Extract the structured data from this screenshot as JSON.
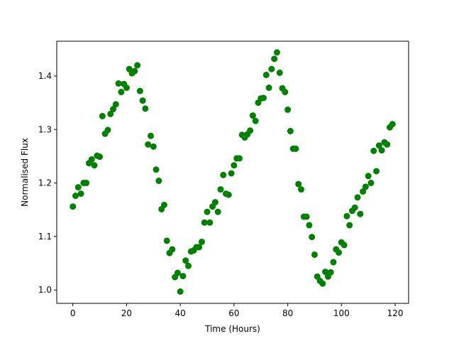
{
  "chart_data": {
    "type": "scatter",
    "title": "",
    "xlabel": "Time (Hours)",
    "ylabel": "Normalised Flux",
    "xlim": [
      -6,
      125
    ],
    "ylim": [
      0.975,
      1.465
    ],
    "xticks": [
      0,
      20,
      40,
      60,
      80,
      100,
      120
    ],
    "yticks": [
      1.0,
      1.1,
      1.2,
      1.3,
      1.4
    ],
    "ytick_labels": [
      "1.0",
      "1.1",
      "1.2",
      "1.3",
      "1.4"
    ],
    "grid": false,
    "marker_color": "#008000",
    "series": [
      {
        "x": [
          0,
          1,
          2,
          3,
          4,
          5,
          6,
          7,
          8,
          9,
          10,
          11,
          12,
          13,
          14,
          15,
          16,
          17,
          18,
          19,
          20,
          21,
          22,
          23,
          24,
          25,
          26,
          27,
          28,
          29,
          30,
          31,
          32,
          33,
          34,
          35,
          36,
          37,
          38,
          39,
          40,
          41,
          42,
          43,
          44,
          45,
          46,
          47,
          48,
          49,
          50,
          51,
          52,
          53,
          54,
          55,
          56,
          57,
          58,
          59,
          60,
          61,
          62,
          63,
          64,
          65,
          66,
          67,
          68,
          69,
          70,
          71,
          72,
          73,
          74,
          75,
          76,
          77,
          78,
          79,
          80,
          81,
          82,
          83,
          84,
          85,
          86,
          87,
          88,
          89,
          90,
          91,
          92,
          93,
          94,
          95,
          96,
          97,
          98,
          99,
          100,
          101,
          102,
          103,
          104,
          105,
          106,
          107,
          108,
          109,
          110,
          111,
          112,
          113,
          114,
          115,
          116,
          117,
          118,
          119
        ],
        "y": [
          1.156,
          1.176,
          1.192,
          1.18,
          1.2,
          1.2,
          1.237,
          1.244,
          1.233,
          1.251,
          1.249,
          1.325,
          1.292,
          1.299,
          1.329,
          1.338,
          1.347,
          1.386,
          1.37,
          1.385,
          1.378,
          1.413,
          1.405,
          1.409,
          1.42,
          1.372,
          1.354,
          1.339,
          1.272,
          1.288,
          1.268,
          1.225,
          1.204,
          1.151,
          1.159,
          1.092,
          1.069,
          1.076,
          1.024,
          1.032,
          0.997,
          1.026,
          1.055,
          1.045,
          1.072,
          1.074,
          1.08,
          1.08,
          1.09,
          1.126,
          1.146,
          1.126,
          1.156,
          1.164,
          1.146,
          1.188,
          1.215,
          1.18,
          1.178,
          1.218,
          1.233,
          1.246,
          1.246,
          1.29,
          1.285,
          1.291,
          1.298,
          1.326,
          1.316,
          1.35,
          1.358,
          1.359,
          1.402,
          1.378,
          1.413,
          1.432,
          1.444,
          1.406,
          1.377,
          1.37,
          1.337,
          1.297,
          1.264,
          1.264,
          1.198,
          1.188,
          1.137,
          1.137,
          1.121,
          1.099,
          1.066,
          1.025,
          1.017,
          1.012,
          1.034,
          1.025,
          1.033,
          1.052,
          1.076,
          1.07,
          1.089,
          1.084,
          1.138,
          1.121,
          1.148,
          1.154,
          1.173,
          1.142,
          1.184,
          1.193,
          1.213,
          1.2,
          1.26,
          1.222,
          1.27,
          1.261,
          1.276,
          1.272,
          1.304,
          1.31
        ]
      }
    ]
  }
}
